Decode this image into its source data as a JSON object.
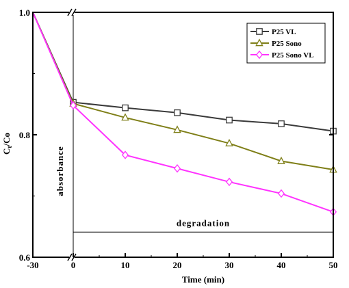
{
  "chart_data": {
    "type": "line",
    "xlabel": "Time (min)",
    "ylabel_main": "C",
    "ylabel_sub": "t",
    "ylabel_tail": "/Co",
    "x_pre_break": [
      -30
    ],
    "x_main": [
      0,
      10,
      20,
      30,
      40,
      50
    ],
    "x_tick_labels": [
      "-30",
      "0",
      "10",
      "20",
      "30",
      "40",
      "50"
    ],
    "y_ticks": [
      0.6,
      0.8,
      1.0
    ],
    "y_tick_labels": [
      "0.6",
      "0.8",
      "1.0"
    ],
    "ylim": [
      0.6,
      1.0
    ],
    "xlim_main": [
      0,
      50
    ],
    "x_break_marker": "//",
    "annotations": {
      "absorbance": "absorbance",
      "degradation": "degradation"
    },
    "degradation_line_y": 0.641,
    "legend_position": "top-right",
    "series": [
      {
        "name": "P25 VL",
        "color": "#3a3a3a",
        "marker": "square",
        "pre_break": [
          1.0
        ],
        "values": [
          0.853,
          0.844,
          0.836,
          0.824,
          0.818,
          0.806
        ]
      },
      {
        "name": "P25 Sono",
        "color": "#7f7f18",
        "marker": "triangle",
        "pre_break": [
          1.0
        ],
        "values": [
          0.851,
          0.828,
          0.808,
          0.786,
          0.757,
          0.743
        ]
      },
      {
        "name": "P25 Sono VL",
        "color": "#ff33ff",
        "marker": "diamond",
        "pre_break": [
          1.0
        ],
        "values": [
          0.848,
          0.767,
          0.745,
          0.723,
          0.704,
          0.674
        ]
      }
    ]
  }
}
